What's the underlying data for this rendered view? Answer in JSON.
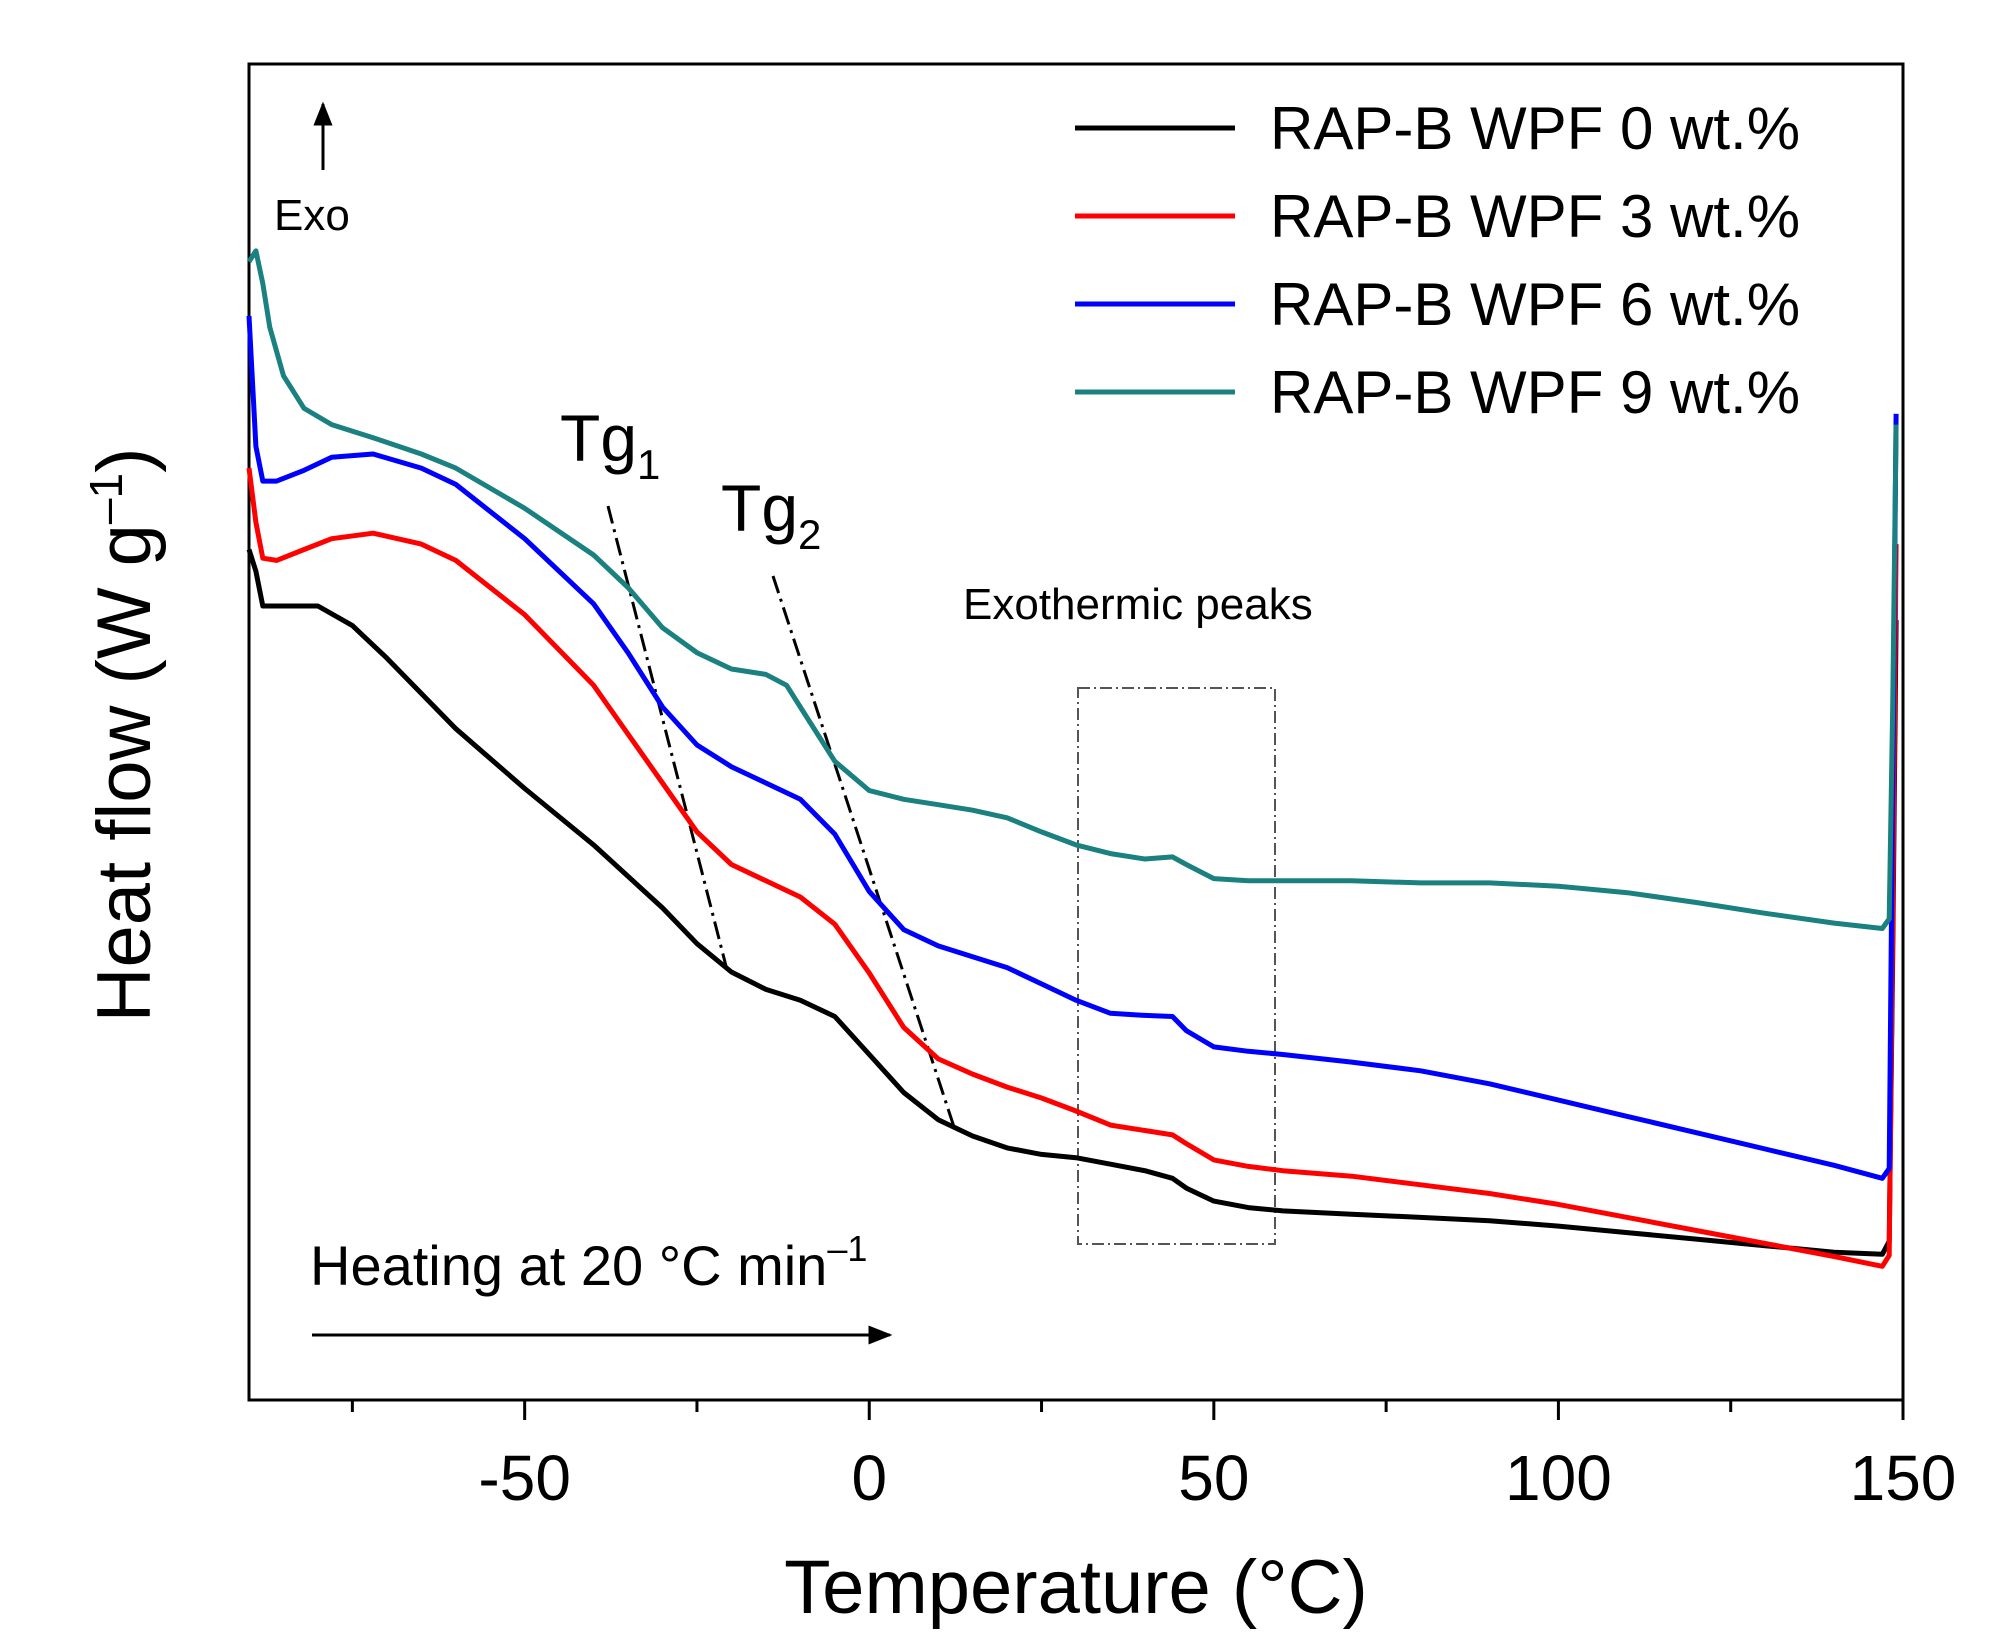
{
  "chart_data": {
    "type": "line",
    "title": "",
    "xlabel": "Temperature (°C)",
    "ylabel": "Heat flow (W g",
    "ylabel_sup": "–1",
    "ylabel_close": ")",
    "xlim": [
      -90,
      150
    ],
    "ylim": [
      0,
      100
    ],
    "x_ticks": [
      -50,
      0,
      50,
      100,
      150
    ],
    "x_tick_labels": [
      "-50",
      "0",
      "50",
      "100",
      "150"
    ],
    "y_ticks_shown": false,
    "legend_position": "top-right",
    "series": [
      {
        "name": "RAP-B WPF 0 wt.%",
        "color": "#000000",
        "x": [
          -90,
          -89,
          -88,
          -85,
          -80,
          -75,
          -70,
          -60,
          -50,
          -40,
          -30,
          -25,
          -20,
          -15,
          -10,
          -5,
          0,
          5,
          10,
          15,
          20,
          25,
          30,
          35,
          40,
          44,
          46,
          50,
          55,
          60,
          70,
          80,
          90,
          100,
          110,
          120,
          130,
          140,
          147,
          148,
          148.5,
          149
        ],
        "y": [
          64.5,
          62.5,
          59.3,
          59.3,
          59.3,
          57.5,
          54.5,
          48.0,
          42.5,
          37.3,
          31.5,
          28.2,
          25.6,
          24.0,
          23.0,
          21.5,
          18.0,
          14.5,
          12.0,
          10.5,
          9.4,
          8.8,
          8.5,
          7.9,
          7.3,
          6.6,
          5.7,
          4.5,
          3.9,
          3.6,
          3.3,
          3.0,
          2.7,
          2.2,
          1.6,
          1.0,
          0.4,
          -0.2,
          -0.4,
          0.8,
          27.0,
          58.0
        ]
      },
      {
        "name": "RAP-B WPF 3 wt.%",
        "color": "#ff0000",
        "x": [
          -90,
          -89,
          -88,
          -86,
          -82,
          -78,
          -72,
          -65,
          -60,
          -50,
          -40,
          -30,
          -25,
          -20,
          -15,
          -10,
          -5,
          0,
          5,
          10,
          15,
          20,
          25,
          30,
          35,
          40,
          44,
          46,
          50,
          55,
          60,
          70,
          80,
          90,
          100,
          110,
          120,
          130,
          140,
          147,
          148,
          148.5,
          149
        ],
        "y": [
          72.0,
          67.0,
          63.7,
          63.5,
          64.5,
          65.5,
          66.0,
          65.0,
          63.5,
          58.5,
          52.0,
          43.0,
          38.5,
          35.5,
          34.0,
          32.5,
          30.0,
          25.5,
          20.5,
          17.6,
          16.2,
          15.0,
          14.0,
          12.8,
          11.5,
          11.0,
          10.6,
          9.8,
          8.3,
          7.7,
          7.3,
          6.8,
          6.0,
          5.2,
          4.2,
          3.0,
          1.8,
          0.6,
          -0.6,
          -1.5,
          -0.5,
          30.0,
          65.0
        ]
      },
      {
        "name": "RAP-B WPF 6 wt.%",
        "color": "#0000ff",
        "x": [
          -90,
          -89,
          -88,
          -86,
          -82,
          -78,
          -72,
          -65,
          -60,
          -50,
          -40,
          -35,
          -30,
          -25,
          -20,
          -15,
          -10,
          -5,
          0,
          5,
          10,
          15,
          20,
          25,
          30,
          35,
          40,
          44,
          46,
          50,
          55,
          60,
          70,
          80,
          90,
          100,
          110,
          120,
          130,
          140,
          147,
          148,
          148.5,
          149
        ],
        "y": [
          86.0,
          74.0,
          70.8,
          70.8,
          71.8,
          73.0,
          73.3,
          72.0,
          70.5,
          65.5,
          59.5,
          55.0,
          50.0,
          46.5,
          44.5,
          43.0,
          41.5,
          38.3,
          33.0,
          29.5,
          28.0,
          27.0,
          26.0,
          24.5,
          23.0,
          21.8,
          21.6,
          21.5,
          20.2,
          18.7,
          18.3,
          18.0,
          17.3,
          16.5,
          15.3,
          13.8,
          12.3,
          10.8,
          9.3,
          7.8,
          6.6,
          7.5,
          43.0,
          77.0
        ]
      },
      {
        "name": "RAP-B WPF 9 wt.%",
        "color": "#1a8080",
        "x": [
          -90,
          -89,
          -88,
          -87,
          -85,
          -82,
          -78,
          -72,
          -65,
          -60,
          -50,
          -40,
          -35,
          -30,
          -25,
          -20,
          -15,
          -12,
          -10,
          -5,
          0,
          5,
          10,
          15,
          20,
          25,
          30,
          35,
          40,
          44,
          46,
          50,
          55,
          60,
          70,
          80,
          90,
          100,
          110,
          120,
          130,
          140,
          147,
          148,
          148.5,
          149
        ],
        "y": [
          91.0,
          92.0,
          89.0,
          85.0,
          80.5,
          77.5,
          76.0,
          74.8,
          73.3,
          72.0,
          68.3,
          64.0,
          61.0,
          57.3,
          55.0,
          53.5,
          53.0,
          52.0,
          50.0,
          45.0,
          42.3,
          41.5,
          41.0,
          40.5,
          39.8,
          38.5,
          37.3,
          36.5,
          36.0,
          36.2,
          35.5,
          34.2,
          34.0,
          34.0,
          34.0,
          33.8,
          33.8,
          33.5,
          32.9,
          32.0,
          31.0,
          30.1,
          29.6,
          30.5,
          50.0,
          76.0
        ]
      }
    ],
    "annotations": {
      "exo_label": "Exo",
      "tg1_main": "Tg",
      "tg1_sub": "1",
      "tg2_main": "Tg",
      "tg2_sub": "2",
      "exothermic_label": "Exothermic peaks",
      "heating_main": "Heating at 20 °C min",
      "heating_sup": "–1"
    }
  }
}
